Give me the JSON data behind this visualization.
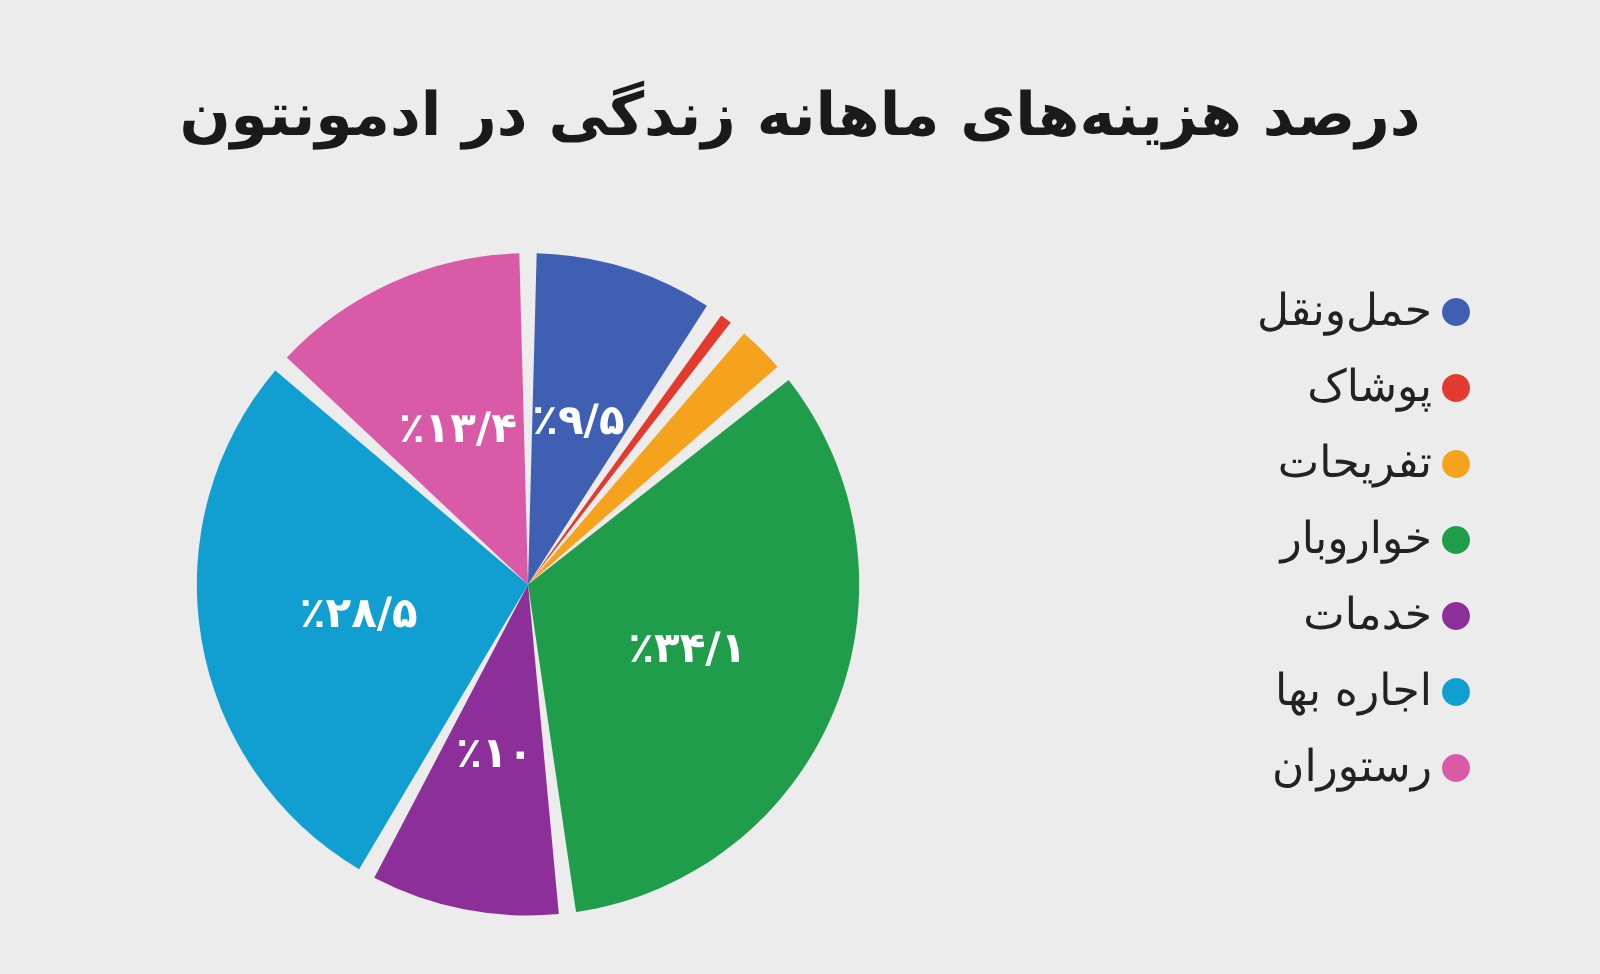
{
  "chart_data": {
    "type": "pie",
    "title": "درصد هزینه‌های ماهانه زندگی در ادمونتون",
    "categories": [
      "حمل‌ونقل",
      "پوشاک",
      "تفریحات",
      "خواروبار",
      "خدمات",
      "اجاره بها",
      "رستوران"
    ],
    "values": [
      9.5,
      1.4,
      3.1,
      34.1,
      10,
      28.5,
      13.4
    ],
    "colors": [
      "#3f5fb2",
      "#e23b2e",
      "#f5a31c",
      "#1f9d4b",
      "#8d2f99",
      "#119fd1",
      "#d95aa7"
    ],
    "value_labels": [
      "٪۹/۵",
      null,
      null,
      "٪۳۴/۱",
      "٪۱۰",
      "٪۲۸/۵",
      "٪۱۳/۴"
    ],
    "legend": "right"
  }
}
